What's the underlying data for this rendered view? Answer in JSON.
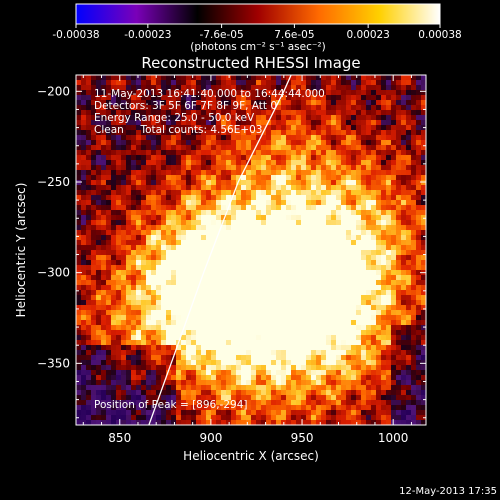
{
  "chart_data": {
    "type": "heatmap",
    "title": "Reconstructed RHESSI Image",
    "xlabel": "Heliocentric X (arcsec)",
    "ylabel": "Heliocentric Y (arcsec)",
    "xlim": [
      826,
      1018
    ],
    "ylim": [
      -384,
      -191
    ],
    "x_ticks": [
      850,
      900,
      950,
      1000
    ],
    "y_ticks": [
      -200,
      -250,
      -300,
      -350
    ],
    "colorbar": {
      "range": [
        -0.00038,
        0.00038
      ],
      "tick_values": [
        -0.00038,
        -0.00023,
        -7.6e-05,
        7.6e-05,
        0.00023,
        0.00038
      ],
      "tick_labels": [
        "-0.00038",
        "-0.00023",
        "-7.6e-05",
        "7.6e-05",
        "0.00023",
        "0.00038"
      ],
      "unit_label": "(photons cm⁻² s⁻¹ asec⁻²)",
      "colors": [
        "#0000ff",
        "#7a00b8",
        "#000000",
        "#a00000",
        "#ff6a00",
        "#ffd000",
        "#ffffff"
      ]
    },
    "info_lines": [
      "11-May-2013 16:41:40.000 to 16:44:44.000",
      "Detectors: 3F 5F 6F 7F 8F 9F, Att 0",
      "Energy Range: 25.0 - 50.0 keV",
      "Clean     Total counts: 4.56E+03"
    ],
    "peak_label": "Position of Peak = [896,-294]",
    "peak": [
      896,
      -294
    ],
    "limb_points": [
      [
        866,
        -384
      ],
      [
        880,
        -345
      ],
      [
        896,
        -300
      ],
      [
        915,
        -250
      ],
      [
        940,
        -200
      ],
      [
        944,
        -191
      ]
    ],
    "hot_sources": [
      {
        "x": 896,
        "y": -294,
        "amp": 1.0
      },
      {
        "x": 963,
        "y": -300,
        "amp": 0.95
      },
      {
        "x": 935,
        "y": -305,
        "amp": 0.75
      },
      {
        "x": 905,
        "y": -325,
        "amp": 0.6
      },
      {
        "x": 970,
        "y": -340,
        "amp": 0.6
      },
      {
        "x": 940,
        "y": -240,
        "amp": 0.55
      },
      {
        "x": 860,
        "y": -330,
        "amp": 0.45
      },
      {
        "x": 990,
        "y": -270,
        "amp": 0.45
      },
      {
        "x": 925,
        "y": -360,
        "amp": 0.35
      }
    ]
  },
  "footer": {
    "timestamp": "12-May-2013 17:35"
  }
}
